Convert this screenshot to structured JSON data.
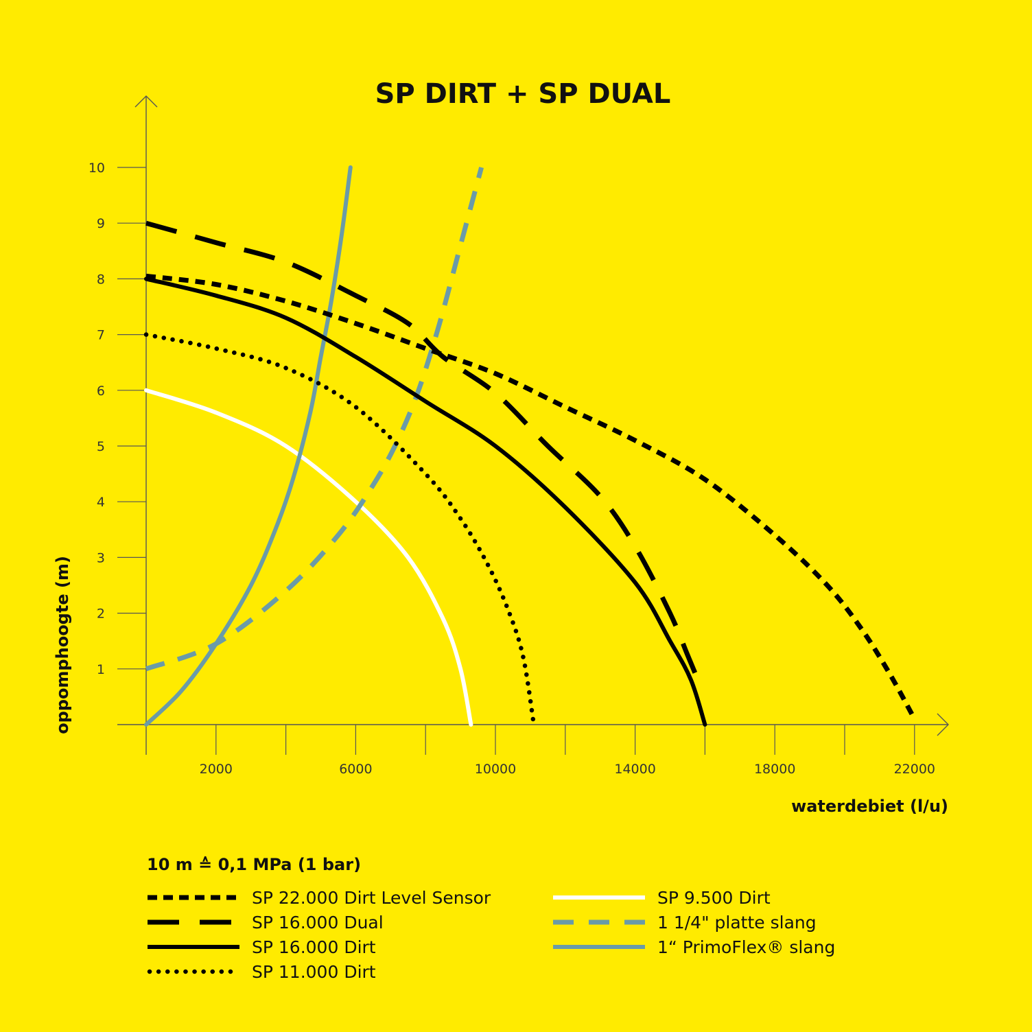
{
  "chart_data": {
    "type": "line",
    "title": "SP DIRT + SP DUAL",
    "xlabel": "waterdebiet (l/u)",
    "ylabel": "oppomphoogte (m)",
    "note": "10 m ≙ 0,1 MPa (1 bar)",
    "xlim": [
      0,
      23000
    ],
    "ylim": [
      0,
      11
    ],
    "x_ticks": [
      2000,
      6000,
      10000,
      14000,
      18000,
      22000
    ],
    "x_gridlines": [
      2000,
      4000,
      6000,
      8000,
      10000,
      12000,
      14000,
      16000,
      18000,
      20000,
      22000
    ],
    "y_ticks": [
      1,
      2,
      3,
      4,
      5,
      6,
      7,
      8,
      9,
      10
    ],
    "legend_position": "bottom",
    "series": [
      {
        "name": "SP 22.000 Dirt Level Sensor",
        "style": "short-dash",
        "color": "#000000",
        "points": [
          [
            0,
            8.05
          ],
          [
            2000,
            7.9
          ],
          [
            4000,
            7.6
          ],
          [
            6000,
            7.2
          ],
          [
            8000,
            6.75
          ],
          [
            10000,
            6.3
          ],
          [
            12000,
            5.7
          ],
          [
            14000,
            5.1
          ],
          [
            16000,
            4.4
          ],
          [
            18000,
            3.4
          ],
          [
            19500,
            2.5
          ],
          [
            20500,
            1.7
          ],
          [
            21300,
            0.9
          ],
          [
            22000,
            0.1
          ]
        ]
      },
      {
        "name": "SP 16.000 Dual",
        "style": "long-dash",
        "color": "#000000",
        "points": [
          [
            0,
            9.0
          ],
          [
            2000,
            8.65
          ],
          [
            4000,
            8.3
          ],
          [
            6000,
            7.7
          ],
          [
            7500,
            7.2
          ],
          [
            8500,
            6.6
          ],
          [
            10000,
            5.95
          ],
          [
            11500,
            5.0
          ],
          [
            13000,
            4.1
          ],
          [
            14000,
            3.2
          ],
          [
            15000,
            2.0
          ],
          [
            15500,
            1.25
          ],
          [
            15800,
            0.8
          ]
        ]
      },
      {
        "name": "SP 16.000 Dirt",
        "style": "solid",
        "color": "#000000",
        "points": [
          [
            0,
            8.0
          ],
          [
            2000,
            7.7
          ],
          [
            4000,
            7.3
          ],
          [
            6000,
            6.6
          ],
          [
            8000,
            5.8
          ],
          [
            10000,
            5.0
          ],
          [
            12000,
            3.9
          ],
          [
            14000,
            2.55
          ],
          [
            15000,
            1.5
          ],
          [
            15600,
            0.8
          ],
          [
            16000,
            0.0
          ]
        ]
      },
      {
        "name": "SP 11.000 Dirt",
        "style": "dotted",
        "color": "#000000",
        "points": [
          [
            0,
            7.0
          ],
          [
            2000,
            6.75
          ],
          [
            4000,
            6.4
          ],
          [
            6000,
            5.7
          ],
          [
            8000,
            4.5
          ],
          [
            9000,
            3.7
          ],
          [
            9800,
            2.85
          ],
          [
            10400,
            2.0
          ],
          [
            10800,
            1.2
          ],
          [
            11100,
            0.0
          ]
        ]
      },
      {
        "name": "SP 9.500 Dirt",
        "style": "solid",
        "color": "#FFFFFF",
        "points": [
          [
            0,
            6.0
          ],
          [
            2000,
            5.6
          ],
          [
            4000,
            5.0
          ],
          [
            6000,
            4.0
          ],
          [
            7500,
            3.0
          ],
          [
            8500,
            1.9
          ],
          [
            9000,
            1.0
          ],
          [
            9300,
            0.0
          ]
        ]
      },
      {
        "name": "1 1/4\" platte slang",
        "style": "dash",
        "color": "#6A9BA8",
        "points": [
          [
            0,
            1.0
          ],
          [
            2000,
            1.45
          ],
          [
            4000,
            2.4
          ],
          [
            5500,
            3.4
          ],
          [
            6500,
            4.3
          ],
          [
            7200,
            5.1
          ],
          [
            7800,
            6.0
          ],
          [
            8400,
            7.2
          ],
          [
            9000,
            8.6
          ],
          [
            9600,
            10.0
          ]
        ]
      },
      {
        "name": "1“ PrimoFlex® slang",
        "style": "solid",
        "color": "#6A9BA8",
        "points": [
          [
            0,
            0.0
          ],
          [
            1000,
            0.6
          ],
          [
            2000,
            1.45
          ],
          [
            3000,
            2.5
          ],
          [
            3700,
            3.5
          ],
          [
            4200,
            4.4
          ],
          [
            4700,
            5.6
          ],
          [
            5000,
            6.6
          ],
          [
            5300,
            7.6
          ],
          [
            5600,
            8.8
          ],
          [
            5850,
            10.0
          ]
        ]
      }
    ]
  }
}
